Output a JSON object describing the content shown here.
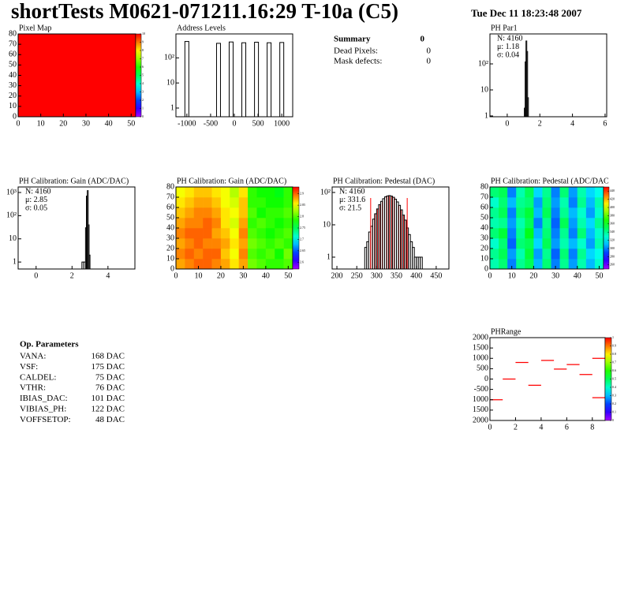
{
  "header": {
    "title": "shortTests M0621-071211.16:29 T-10a (C5)",
    "date": "Tue Dec 11 18:23:48 2007"
  },
  "summary": {
    "title": "Summary",
    "total": 0,
    "rows": [
      {
        "label": "Dead Pixels:",
        "value": 0
      },
      {
        "label": "Mask defects:",
        "value": 0
      }
    ]
  },
  "op_parameters": {
    "title": "Op. Parameters",
    "rows": [
      {
        "label": "VANA:",
        "value": "168 DAC"
      },
      {
        "label": "VSF:",
        "value": "175 DAC"
      },
      {
        "label": "CALDEL:",
        "value": "75 DAC"
      },
      {
        "label": "VTHR:",
        "value": "76 DAC"
      },
      {
        "label": "IBIAS_DAC:",
        "value": "101 DAC"
      },
      {
        "label": "VIBIAS_PH:",
        "value": "122 DAC"
      },
      {
        "label": "VOFFSETOP:",
        "value": "48 DAC"
      }
    ]
  },
  "chart_data": [
    {
      "type": "heatmap",
      "title": "Pixel Map",
      "xlim": [
        0,
        52
      ],
      "ylim": [
        0,
        80
      ],
      "xticks": [
        0,
        10,
        20,
        30,
        40,
        50
      ],
      "yticks": [
        0,
        10,
        20,
        30,
        40,
        50,
        60,
        70,
        80
      ],
      "zlim": [
        0,
        10
      ],
      "zticks": [
        0,
        1,
        2,
        3,
        4,
        5,
        6,
        7,
        8,
        9,
        10
      ],
      "values": [
        [
          10
        ]
      ]
    },
    {
      "type": "spike",
      "title": "Address Levels",
      "log_y": true,
      "xlim": [
        -1230,
        1230
      ],
      "ylim": [
        0.45,
        900
      ],
      "xticks": [
        -1000,
        -500,
        0,
        500,
        1000
      ],
      "yticks": [
        1,
        10,
        {
          "value": 100,
          "label": "10²"
        }
      ],
      "x": [
        -1000,
        -333,
        -67,
        200,
        467,
        733,
        1000
      ],
      "values": [
        450,
        380,
        430,
        400,
        420,
        400,
        410
      ],
      "color": "#000000"
    },
    {
      "type": "histogram",
      "title": "PH Par1",
      "log_y": true,
      "xlim": [
        -1.06,
        6.1
      ],
      "ylim": [
        0.93,
        1420
      ],
      "xticks": [
        0,
        2,
        4,
        6
      ],
      "yticks": [
        1,
        10,
        {
          "value": 100,
          "label": "10²"
        }
      ],
      "stats": [
        "N: 4160",
        "μ: 1.18",
        "σ: 0.04"
      ],
      "stats_colors": [
        "#000000",
        "#000000",
        "#000000"
      ],
      "bins": [
        1.05,
        1.1,
        1.15,
        1.2,
        1.25,
        1.3
      ],
      "values": [
        2,
        120,
        760,
        300,
        5
      ]
    },
    {
      "type": "histogram",
      "title": "PH Calibration: Gain (ADC/DAC)",
      "log_y": true,
      "xlim": [
        -1,
        5.5
      ],
      "ylim": [
        0.5,
        1730
      ],
      "xticks": [
        0,
        2,
        4
      ],
      "yticks": [
        1,
        10,
        {
          "value": 100,
          "label": "10²"
        },
        {
          "value": 1000,
          "label": "10³"
        }
      ],
      "stats": [
        "N: 4160",
        "μ: 2.85",
        "σ: 0.05"
      ],
      "stats_colors": [
        "#000000",
        "#000000",
        "#000000"
      ],
      "bins": [
        2.55,
        2.65,
        2.75,
        2.8,
        2.85,
        2.9,
        2.95,
        3.0
      ],
      "values": [
        1,
        1,
        30,
        700,
        1200,
        40,
        2
      ]
    },
    {
      "type": "heatmap",
      "title": "PH Calibration: Gain (ADC/DAC)",
      "xlim": [
        0,
        52
      ],
      "ylim": [
        0,
        80
      ],
      "xticks": [
        0,
        10,
        20,
        30,
        40,
        50
      ],
      "yticks": [
        0,
        10,
        20,
        30,
        40,
        50,
        60,
        70,
        80
      ],
      "zlim": [
        2.57,
        2.93
      ],
      "zticks": [
        2.6,
        2.65,
        2.7,
        2.75,
        2.8,
        2.85,
        2.9
      ],
      "values": [
        [
          2.88,
          2.89,
          2.9,
          2.9,
          2.89,
          2.88,
          2.86,
          2.88,
          2.81,
          2.8,
          2.79,
          2.79,
          2.8
        ],
        [
          2.89,
          2.9,
          2.89,
          2.9,
          2.9,
          2.87,
          2.85,
          2.89,
          2.8,
          2.79,
          2.8,
          2.78,
          2.81
        ],
        [
          2.88,
          2.89,
          2.9,
          2.89,
          2.89,
          2.88,
          2.86,
          2.88,
          2.81,
          2.8,
          2.79,
          2.8,
          2.79
        ],
        [
          2.89,
          2.9,
          2.9,
          2.9,
          2.88,
          2.87,
          2.85,
          2.89,
          2.8,
          2.79,
          2.78,
          2.79,
          2.8
        ],
        [
          2.88,
          2.89,
          2.89,
          2.9,
          2.89,
          2.86,
          2.84,
          2.88,
          2.79,
          2.8,
          2.79,
          2.78,
          2.79
        ],
        [
          2.87,
          2.88,
          2.89,
          2.89,
          2.88,
          2.86,
          2.85,
          2.87,
          2.8,
          2.78,
          2.79,
          2.79,
          2.8
        ],
        [
          2.86,
          2.87,
          2.88,
          2.88,
          2.87,
          2.85,
          2.84,
          2.87,
          2.79,
          2.79,
          2.78,
          2.78,
          2.79
        ],
        [
          2.85,
          2.86,
          2.87,
          2.87,
          2.86,
          2.85,
          2.83,
          2.86,
          2.79,
          2.78,
          2.78,
          2.77,
          2.79
        ]
      ]
    },
    {
      "type": "histogram",
      "title": "PH Calibration: Pedestal (DAC)",
      "log_y": true,
      "xlim": [
        188,
        482
      ],
      "ylim": [
        0.43,
        148
      ],
      "xticks": [
        200,
        250,
        300,
        350,
        400,
        450
      ],
      "yticks": [
        1,
        10,
        {
          "value": 100,
          "label": "10²"
        }
      ],
      "stats": [
        "N: 4160",
        "μ: 331.6",
        "σ: 21.5"
      ],
      "stats_colors": [
        "#000000",
        "#ff0000",
        "#ff0000"
      ],
      "markers": [
        285,
        377
      ],
      "marker_color": "#ff0000",
      "bins": [
        270,
        275,
        280,
        285,
        290,
        295,
        300,
        305,
        310,
        315,
        320,
        325,
        330,
        335,
        340,
        345,
        350,
        355,
        360,
        365,
        370,
        375,
        380,
        385,
        390,
        395,
        400,
        405,
        410,
        415
      ],
      "values": [
        2,
        3,
        6,
        9,
        15,
        22,
        31,
        42,
        53,
        64,
        73,
        78,
        80,
        77,
        71,
        62,
        51,
        40,
        29,
        20,
        14,
        8,
        5,
        3,
        2,
        1,
        1,
        1,
        1
      ]
    },
    {
      "type": "heatmap",
      "title": "PH Calibration: Pedestal (ADC/DAC",
      "xlim": [
        0,
        52
      ],
      "ylim": [
        0,
        80
      ],
      "xticks": [
        0,
        10,
        20,
        30,
        40,
        50
      ],
      "yticks": [
        0,
        10,
        20,
        30,
        40,
        50,
        60,
        70,
        80
      ],
      "zlim": [
        250,
        450
      ],
      "zticks": [
        260,
        280,
        300,
        320,
        340,
        360,
        380,
        400,
        420,
        440
      ],
      "values": [
        [
          335,
          345,
          300,
          340,
          350,
          310,
          345,
          300,
          340,
          305,
          335,
          310,
          330
        ],
        [
          340,
          350,
          305,
          335,
          355,
          305,
          340,
          295,
          345,
          300,
          340,
          315,
          325
        ],
        [
          330,
          345,
          295,
          345,
          350,
          315,
          350,
          305,
          335,
          310,
          330,
          305,
          335
        ],
        [
          345,
          355,
          300,
          340,
          360,
          310,
          345,
          300,
          340,
          300,
          345,
          310,
          330
        ],
        [
          335,
          340,
          305,
          335,
          350,
          300,
          340,
          295,
          350,
          305,
          335,
          315,
          340
        ],
        [
          340,
          350,
          300,
          345,
          355,
          310,
          350,
          300,
          340,
          310,
          330,
          305,
          330
        ],
        [
          330,
          345,
          310,
          340,
          345,
          305,
          345,
          305,
          335,
          300,
          340,
          310,
          335
        ],
        [
          345,
          350,
          300,
          335,
          350,
          315,
          340,
          300,
          345,
          305,
          335,
          315,
          325
        ]
      ]
    },
    {
      "type": "segments",
      "title": "PHRange",
      "xlim": [
        0,
        9
      ],
      "ylim": [
        -2000,
        2000
      ],
      "xticks": [
        0,
        2,
        4,
        6,
        8
      ],
      "yticks": [
        {
          "value": -2000,
          "label": "2000"
        },
        {
          "value": -1500,
          "label": "1500"
        },
        {
          "value": -1000,
          "label": "1000"
        },
        -500,
        0,
        500,
        1000,
        1500,
        2000
      ],
      "zlim": [
        0,
        1
      ],
      "zticks": [
        0,
        0.1,
        0.2,
        0.3,
        0.4,
        0.5,
        0.6,
        0.7,
        0.8,
        0.9,
        1
      ],
      "color": "#ff0000",
      "x": [
        0,
        1,
        2,
        3,
        4,
        5,
        6,
        7,
        8,
        8
      ],
      "values": [
        -1000,
        0,
        800,
        -300,
        900,
        480,
        700,
        220,
        1000,
        -900
      ]
    }
  ]
}
